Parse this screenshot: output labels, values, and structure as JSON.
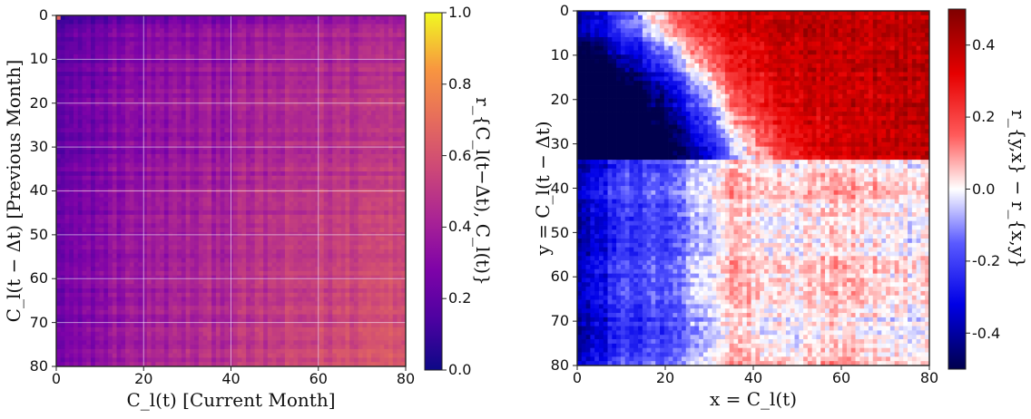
{
  "chart_data": [
    {
      "type": "heatmap",
      "title": "",
      "grid_size": 81,
      "xlabel": "C_l(t)  [Current Month]",
      "ylabel": "C_l(t − Δt)  [Previous Month]",
      "xlim": [
        0,
        80
      ],
      "ylim": [
        0,
        80
      ],
      "x_ticks": [
        "0",
        "20",
        "40",
        "60",
        "80"
      ],
      "y_ticks": [
        "0",
        "10",
        "20",
        "30",
        "40",
        "50",
        "60",
        "70",
        "80"
      ],
      "colormap": "plasma",
      "colorbar": {
        "label": "r_{C_l(t−Δt), C_l(t)}",
        "min": 0.0,
        "max": 1.0,
        "ticks": [
          "0.0",
          "0.2",
          "0.4",
          "0.6",
          "0.8",
          "1.0"
        ]
      },
      "value_summary": {
        "low_corner": 0.22,
        "high_corner": 0.66,
        "typical_range": [
          0.2,
          0.7
        ],
        "anomaly_cell": {
          "x": 0,
          "y": 0,
          "value": 0.68
        }
      }
    },
    {
      "type": "heatmap",
      "title": "",
      "grid_size": 81,
      "xlabel": "x = C_l(t)",
      "ylabel": "y = C_l(t − Δt)",
      "xlim": [
        0,
        80
      ],
      "ylim": [
        0,
        80
      ],
      "x_ticks": [
        "0",
        "20",
        "40",
        "60",
        "80"
      ],
      "y_ticks": [
        "0",
        "10",
        "20",
        "30",
        "40",
        "50",
        "60",
        "70",
        "80"
      ],
      "colormap": "seismic",
      "colorbar": {
        "label": "r_{y,x} − r_{x,y}",
        "min": -0.5,
        "max": 0.5,
        "ticks": [
          "-0.4",
          "-0.2",
          "0.0",
          "0.2",
          "0.4"
        ]
      },
      "value_summary": {
        "top_right_region": 0.35,
        "bottom_left_region": -0.35,
        "lower_right_region": 0.03,
        "typical_range": [
          -0.45,
          0.45
        ]
      }
    }
  ]
}
